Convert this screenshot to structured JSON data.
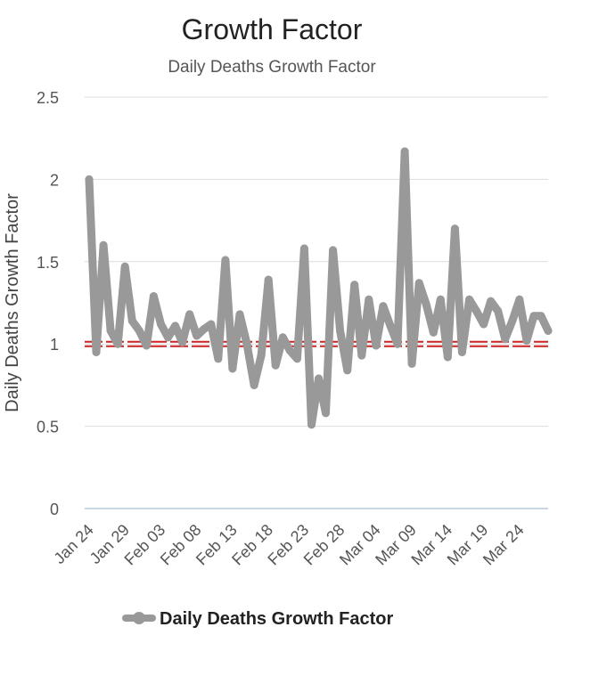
{
  "chart_data": {
    "type": "line",
    "title": "Growth Factor",
    "subtitle": "Daily Deaths Growth Factor",
    "xlabel": "",
    "ylabel": "Daily Deaths Growth Factor",
    "ylim": [
      0,
      2.5
    ],
    "y_ticks": [
      "0",
      "0.5",
      "1",
      "1.5",
      "2",
      "2.5"
    ],
    "x_start": "Jan 24",
    "x_end": "Mar 28",
    "x_tick_labels": [
      "Jan 24",
      "Jan 29",
      "Feb 03",
      "Feb 08",
      "Feb 13",
      "Feb 18",
      "Feb 23",
      "Feb 28",
      "Mar 04",
      "Mar 09",
      "Mar 14",
      "Mar 19",
      "Mar 24"
    ],
    "grid": true,
    "legend_position": "bottom",
    "reference_line": {
      "value": 1,
      "color": "#cc2222",
      "style": "dashed"
    },
    "series": [
      {
        "name": "Daily Deaths Growth Factor",
        "color": "#999999",
        "x": [
          "Jan 24",
          "Jan 25",
          "Jan 26",
          "Jan 27",
          "Jan 28",
          "Jan 29",
          "Jan 30",
          "Jan 31",
          "Feb 01",
          "Feb 02",
          "Feb 03",
          "Feb 04",
          "Feb 05",
          "Feb 06",
          "Feb 07",
          "Feb 08",
          "Feb 09",
          "Feb 10",
          "Feb 11",
          "Feb 12",
          "Feb 13",
          "Feb 14",
          "Feb 15",
          "Feb 16",
          "Feb 17",
          "Feb 18",
          "Feb 19",
          "Feb 20",
          "Feb 21",
          "Feb 22",
          "Feb 23",
          "Feb 24",
          "Feb 25",
          "Feb 26",
          "Feb 27",
          "Feb 28",
          "Feb 29",
          "Mar 01",
          "Mar 02",
          "Mar 03",
          "Mar 04",
          "Mar 05",
          "Mar 06",
          "Mar 07",
          "Mar 08",
          "Mar 09",
          "Mar 10",
          "Mar 11",
          "Mar 12",
          "Mar 13",
          "Mar 14",
          "Mar 15",
          "Mar 16",
          "Mar 17",
          "Mar 18",
          "Mar 19",
          "Mar 20",
          "Mar 21",
          "Mar 22",
          "Mar 23",
          "Mar 24",
          "Mar 25",
          "Mar 26",
          "Mar 27",
          "Mar 28"
        ],
        "values": [
          2.0,
          0.95,
          1.6,
          1.08,
          1.0,
          1.47,
          1.14,
          1.08,
          0.99,
          1.29,
          1.12,
          1.04,
          1.11,
          1.01,
          1.18,
          1.05,
          1.09,
          1.12,
          0.91,
          1.51,
          0.85,
          1.18,
          1.0,
          0.75,
          0.93,
          1.39,
          0.87,
          1.04,
          0.96,
          0.91,
          1.58,
          0.51,
          0.79,
          0.58,
          1.57,
          1.08,
          0.84,
          1.36,
          0.93,
          1.27,
          0.99,
          1.23,
          1.11,
          1.0,
          2.17,
          0.88,
          1.37,
          1.24,
          1.07,
          1.27,
          0.92,
          1.7,
          0.95,
          1.27,
          1.2,
          1.12,
          1.26,
          1.2,
          1.03,
          1.14,
          1.27,
          1.02,
          1.17,
          1.17,
          1.08
        ]
      }
    ]
  }
}
